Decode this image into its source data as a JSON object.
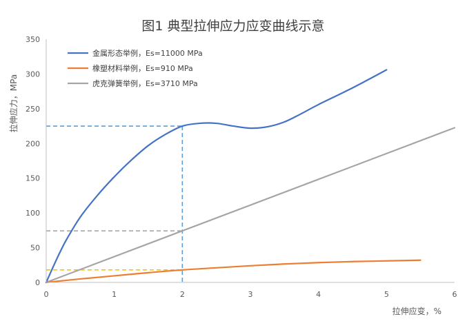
{
  "chart_data": {
    "type": "line",
    "title": "图1   典型拉伸应力应变曲线示意",
    "xlabel": "拉伸应变，%",
    "ylabel": "拉伸应力，MPa",
    "xlim": [
      0,
      6
    ],
    "ylim": [
      0,
      350
    ],
    "xticks": [
      0,
      1,
      2,
      3,
      4,
      5,
      6
    ],
    "yticks": [
      0,
      50,
      100,
      150,
      200,
      250,
      300,
      350
    ],
    "grid": false,
    "legend_position": "top-left",
    "series": [
      {
        "name": "金属形态举例，Es=11000 MPa",
        "color": "#4472C4",
        "x": [
          0,
          0.1,
          0.2,
          0.3,
          0.5,
          0.75,
          1.0,
          1.25,
          1.5,
          1.75,
          2.0,
          2.25,
          2.5,
          2.75,
          3.0,
          3.25,
          3.5,
          3.75,
          4.0,
          4.5,
          5.0
        ],
        "y": [
          0,
          22,
          43,
          62,
          94,
          125,
          152,
          176,
          197,
          213,
          225,
          229,
          229,
          225,
          222,
          224,
          231,
          243,
          256,
          280,
          306
        ]
      },
      {
        "name": "橡塑材料举例，Es=910 MPa",
        "color": "#ED7D31",
        "x": [
          0,
          0.5,
          1.0,
          1.5,
          2.0,
          2.5,
          3.0,
          3.5,
          4.0,
          4.5,
          5.0,
          5.5
        ],
        "y": [
          0,
          5,
          9.5,
          14,
          18,
          21,
          24,
          26.5,
          28.5,
          30,
          31,
          32
        ]
      },
      {
        "name": "虎克弹簧举例，Es=3710 MPa",
        "color": "#A5A5A5",
        "x": [
          0,
          6
        ],
        "y": [
          0,
          222.6
        ]
      }
    ],
    "reference_lines": [
      {
        "x": 2,
        "y": 225,
        "color": "#5B9BD5"
      },
      {
        "x": 2,
        "y": 74.2,
        "color": "#A5A5A5"
      },
      {
        "x": 2,
        "y": 18,
        "color": "#FFC000"
      }
    ]
  }
}
